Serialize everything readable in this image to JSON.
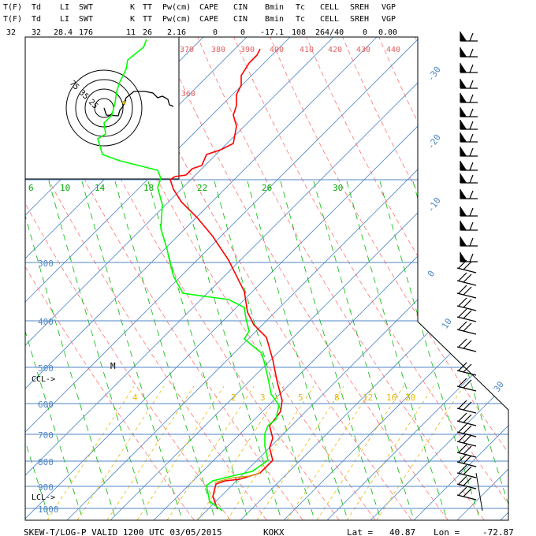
{
  "header": {
    "labels_row1": [
      "T(F)",
      "Td",
      "LI",
      "SWT",
      "K",
      "TT",
      "Pw(cm)",
      "CAPE",
      "CIN",
      "Bmin",
      "Tc",
      "CELL",
      "SREH",
      "VGP"
    ],
    "labels_row2": [
      "T(F)",
      "Td",
      "LI",
      "SWT",
      "K",
      "TT",
      "Pw(cm)",
      "CAPE",
      "CIN",
      "Bmin",
      "Tc",
      "CELL",
      "SREH",
      "VGP"
    ],
    "values": [
      "32",
      "32",
      "28.4",
      "176",
      "11",
      "26",
      "2.16",
      "0",
      "0",
      "-17.1",
      "108",
      "264/40",
      "0",
      "0.00"
    ]
  },
  "footer": {
    "title": "SKEW-T/LOG-P VALID 1200 UTC 03/05/2015",
    "station": "KOKX",
    "lat_label": "Lat =",
    "lat_value": "40.87",
    "lon_label": "Lon =",
    "lon_value": "-72.87"
  },
  "colors": {
    "temperature": "#ff0000",
    "dewpoint": "#00ff00",
    "isobar": "#4f86c6",
    "isotherm": "#4f86c6",
    "dry_adiabat": "#ff6060",
    "moist_adiabat": "#00bb00",
    "mixing_ratio": "#e6b800",
    "theta_label": "#e06060",
    "hodograph": "#000000"
  },
  "chart_data": {
    "type": "skew-t",
    "pressure_levels": [
      1000,
      900,
      800,
      700,
      600,
      500,
      400,
      300
    ],
    "isotherm_labels": [
      "30",
      "-30",
      "-20",
      "-10",
      "0",
      "10"
    ],
    "dewpoint_scale_labels": [
      "6",
      "10",
      "14",
      "18",
      "22",
      "26",
      "30"
    ],
    "theta_labels": [
      "370",
      "380",
      "390",
      "400",
      "410",
      "420",
      "430",
      "440",
      "360"
    ],
    "mixing_ratio_labels": [
      "4",
      "2",
      "3",
      "5",
      "8",
      "12",
      "16",
      "20"
    ],
    "ccl_label": "CCL->",
    "lcl_label": "LCL->",
    "mark_label": "M",
    "hodograph_ring_labels": [
      "75",
      "35",
      "25"
    ]
  }
}
